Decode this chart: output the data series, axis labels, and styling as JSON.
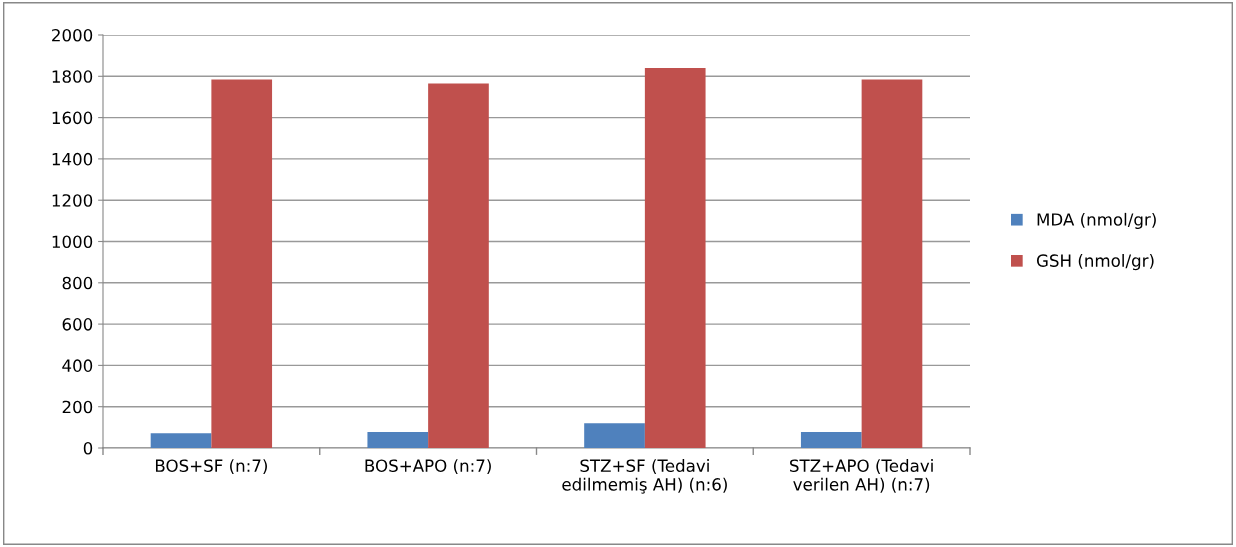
{
  "chart_data": {
    "type": "bar",
    "categories": [
      "BOS+SF (n:7)",
      "BOS+APO (n:7)",
      "STZ+SF (Tedavi\nedilmemiş AH) (n:6)",
      "STZ+APO (Tedavi\nverilen AH) (n:7)"
    ],
    "series": [
      {
        "name": "MDA (nmol/gr)",
        "color": "#4f81bd",
        "values": [
          72,
          78,
          120,
          78
        ]
      },
      {
        "name": "GSH (nmol/gr)",
        "color": "#c0504d",
        "values": [
          1785,
          1765,
          1840,
          1785
        ]
      }
    ],
    "ylim": [
      0,
      2000
    ],
    "yticks": [
      0,
      200,
      400,
      600,
      800,
      1000,
      1200,
      1400,
      1600,
      1800,
      2000
    ],
    "grid": "y",
    "legend": "right"
  }
}
